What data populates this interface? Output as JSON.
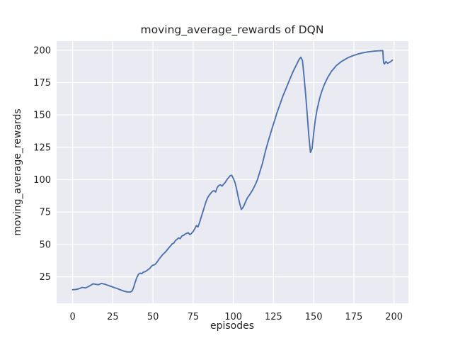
{
  "chart_data": {
    "type": "line",
    "title": "moving_average_rewards of DQN",
    "xlabel": "episodes",
    "ylabel": "moving_average_rewards",
    "x_ticks": [
      0,
      25,
      50,
      75,
      100,
      125,
      150,
      175,
      200
    ],
    "y_ticks": [
      25,
      50,
      75,
      100,
      125,
      150,
      175,
      200
    ],
    "xlim": [
      -9.95,
      208.95
    ],
    "ylim": [
      4.5,
      207.0
    ],
    "grid": true,
    "legend": "none",
    "style": "seaborn-darkgrid",
    "colors": {
      "line": "#4c72b0",
      "plot_background": "#eaeaf2",
      "grid": "#ffffff",
      "figure_background": "#ffffff",
      "text": "#262626"
    },
    "series": [
      {
        "name": "moving_average_rewards",
        "points": [
          [
            0,
            15
          ],
          [
            2,
            15.2
          ],
          [
            4,
            15.8
          ],
          [
            6,
            16.8
          ],
          [
            8,
            16.4
          ],
          [
            10,
            17.5
          ],
          [
            12,
            19
          ],
          [
            13,
            19.6
          ],
          [
            14,
            19.2
          ],
          [
            16,
            18.9
          ],
          [
            18,
            19.9
          ],
          [
            20,
            19.3
          ],
          [
            22,
            18.4
          ],
          [
            24,
            17.5
          ],
          [
            26,
            16.6
          ],
          [
            28,
            15.8
          ],
          [
            30,
            14.8
          ],
          [
            32,
            13.9
          ],
          [
            34,
            13.3
          ],
          [
            36,
            13.2
          ],
          [
            37,
            14
          ],
          [
            38,
            17
          ],
          [
            39,
            21
          ],
          [
            40,
            24.5
          ],
          [
            41,
            27
          ],
          [
            42,
            27.8
          ],
          [
            43,
            27.4
          ],
          [
            44,
            28.6
          ],
          [
            45,
            28.9
          ],
          [
            46,
            29.6
          ],
          [
            48,
            31.5
          ],
          [
            49,
            33
          ],
          [
            50,
            34
          ],
          [
            51,
            34.3
          ],
          [
            52,
            35.5
          ],
          [
            54,
            39
          ],
          [
            56,
            42
          ],
          [
            58,
            44.5
          ],
          [
            60,
            47.5
          ],
          [
            61,
            49
          ],
          [
            62,
            50.5
          ],
          [
            63,
            51
          ],
          [
            64,
            53
          ],
          [
            65,
            54
          ],
          [
            66,
            55
          ],
          [
            67,
            54.5
          ],
          [
            68,
            56.5
          ],
          [
            69,
            57
          ],
          [
            70,
            58
          ],
          [
            71,
            58.5
          ],
          [
            72,
            59
          ],
          [
            73,
            57.5
          ],
          [
            74,
            58.5
          ],
          [
            75,
            60
          ],
          [
            76,
            62
          ],
          [
            77,
            64.5
          ],
          [
            78,
            63.5
          ],
          [
            79,
            67
          ],
          [
            80,
            71
          ],
          [
            81,
            75
          ],
          [
            82,
            79
          ],
          [
            83,
            83
          ],
          [
            84,
            86
          ],
          [
            85,
            88
          ],
          [
            86,
            89.5
          ],
          [
            87,
            91
          ],
          [
            88,
            91.5
          ],
          [
            89,
            90.5
          ],
          [
            90,
            94
          ],
          [
            91,
            95.5
          ],
          [
            92,
            96
          ],
          [
            93,
            95
          ],
          [
            94,
            96.5
          ],
          [
            95,
            98
          ],
          [
            96,
            100
          ],
          [
            97,
            101.5
          ],
          [
            98,
            103
          ],
          [
            99,
            103.4
          ],
          [
            100,
            101
          ],
          [
            101,
            98
          ],
          [
            102,
            93
          ],
          [
            103,
            87
          ],
          [
            104,
            81.5
          ],
          [
            105,
            77
          ],
          [
            106,
            78.5
          ],
          [
            107,
            81
          ],
          [
            108,
            84
          ],
          [
            109,
            86.5
          ],
          [
            110,
            88
          ],
          [
            111,
            90
          ],
          [
            112,
            92
          ],
          [
            113,
            94.5
          ],
          [
            114,
            97
          ],
          [
            115,
            100
          ],
          [
            116,
            104
          ],
          [
            117,
            108
          ],
          [
            118,
            112
          ],
          [
            119,
            117
          ],
          [
            120,
            122
          ],
          [
            121,
            126.5
          ],
          [
            122,
            131
          ],
          [
            123,
            135
          ],
          [
            124,
            139
          ],
          [
            125,
            143
          ],
          [
            126,
            147
          ],
          [
            127,
            151
          ],
          [
            128,
            154.5
          ],
          [
            129,
            158
          ],
          [
            130,
            161.5
          ],
          [
            131,
            165
          ],
          [
            132,
            168
          ],
          [
            133,
            171
          ],
          [
            134,
            174
          ],
          [
            135,
            177
          ],
          [
            136,
            180
          ],
          [
            137,
            183
          ],
          [
            138,
            185.5
          ],
          [
            139,
            188
          ],
          [
            140,
            190.5
          ],
          [
            141,
            193
          ],
          [
            142,
            194.5
          ],
          [
            143,
            192
          ],
          [
            144,
            180
          ],
          [
            145,
            166
          ],
          [
            146,
            150
          ],
          [
            147,
            134
          ],
          [
            148,
            121
          ],
          [
            149,
            124
          ],
          [
            150,
            136
          ],
          [
            151,
            146
          ],
          [
            152,
            153.5
          ],
          [
            153,
            159
          ],
          [
            154,
            164
          ],
          [
            155,
            168
          ],
          [
            156,
            171.5
          ],
          [
            157,
            174.5
          ],
          [
            158,
            177
          ],
          [
            159,
            179.5
          ],
          [
            160,
            181.5
          ],
          [
            161,
            183.5
          ],
          [
            162,
            185
          ],
          [
            163,
            186.5
          ],
          [
            164,
            188
          ],
          [
            165,
            189
          ],
          [
            166,
            190
          ],
          [
            167,
            191
          ],
          [
            168,
            191.8
          ],
          [
            169,
            192.5
          ],
          [
            170,
            193.2
          ],
          [
            171,
            193.9
          ],
          [
            172,
            194.5
          ],
          [
            173,
            195
          ],
          [
            174,
            195.5
          ],
          [
            175,
            196
          ],
          [
            176,
            196.4
          ],
          [
            177,
            196.8
          ],
          [
            178,
            197.2
          ],
          [
            179,
            197.5
          ],
          [
            180,
            197.8
          ],
          [
            181,
            198.1
          ],
          [
            182,
            198.3
          ],
          [
            183,
            198.5
          ],
          [
            184,
            198.7
          ],
          [
            185,
            198.9
          ],
          [
            186,
            199
          ],
          [
            187,
            199.2
          ],
          [
            188,
            199.3
          ],
          [
            189,
            199.4
          ],
          [
            190,
            199.5
          ],
          [
            191,
            199.5
          ],
          [
            192,
            199.6
          ],
          [
            193,
            199.6
          ],
          [
            193.5,
            190.5
          ],
          [
            194,
            189.3
          ],
          [
            195,
            191.2
          ],
          [
            196,
            189.8
          ],
          [
            197,
            190.5
          ],
          [
            198,
            191.2
          ],
          [
            199,
            192.3
          ]
        ]
      }
    ]
  }
}
